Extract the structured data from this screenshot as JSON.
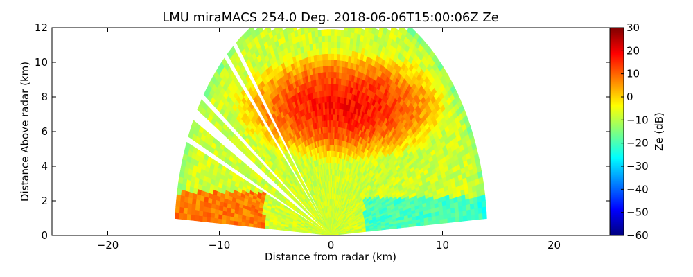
{
  "chart_data": {
    "type": "heatmap",
    "subtype": "rhi-radar-scan",
    "title": "LMU miraMACS 254.0 Deg. 2018-06-06T15:00:06Z  Ze",
    "xlabel": "Distance from radar (km)",
    "ylabel": "Distance Above radar  (km)",
    "xlim": [
      -25,
      25
    ],
    "ylim": [
      0,
      12
    ],
    "xticks": [
      -20,
      -10,
      0,
      10,
      20
    ],
    "yticks": [
      0,
      2,
      4,
      6,
      8,
      10,
      12
    ],
    "colorbar": {
      "label": "Ze (dB)",
      "range": [
        -60,
        30
      ],
      "ticks": [
        30,
        20,
        10,
        0,
        -10,
        -20,
        -30,
        -40,
        -50,
        -60
      ],
      "colormap": "jet"
    },
    "scan": {
      "max_range_km": 14,
      "elevation_range_deg": [
        4,
        176
      ],
      "dominant_region": {
        "x_km": [
          -8,
          10
        ],
        "height_km": [
          4.5,
          10.5
        ],
        "approx_value_db": 18
      },
      "lower_region_approx_value_db": -8,
      "upper_edge_approx_value_db": -15,
      "blocked_beams_approx_elevation_deg": [
        128,
        132,
        145,
        150,
        157
      ]
    }
  }
}
